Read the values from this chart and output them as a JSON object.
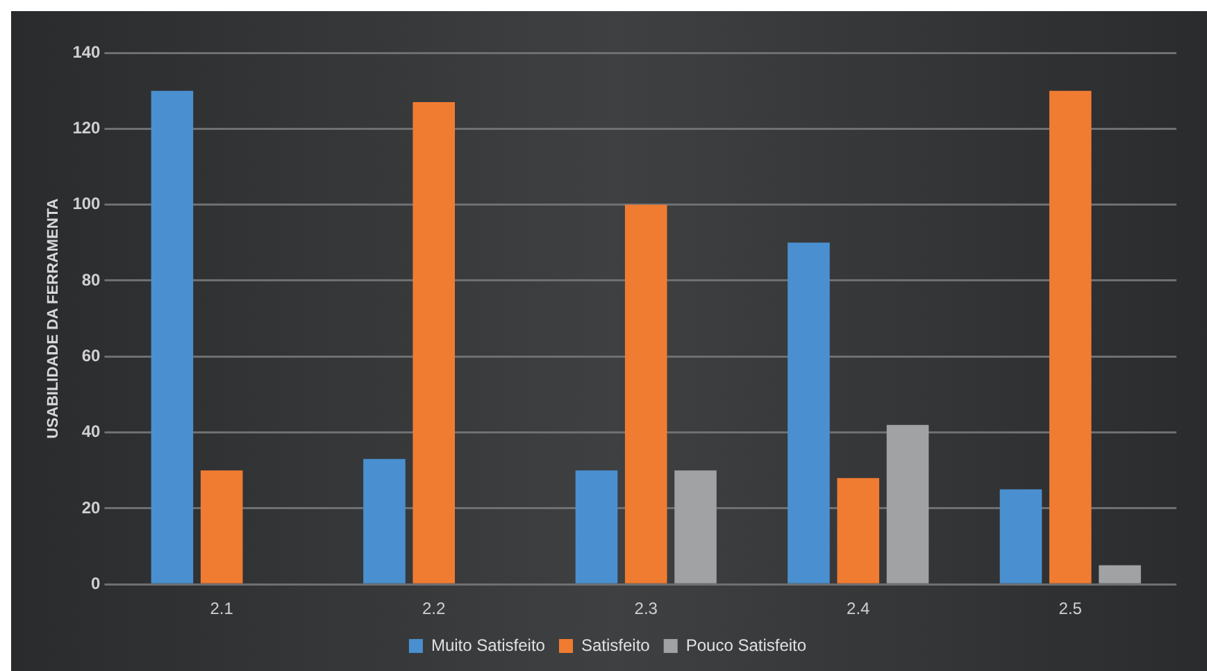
{
  "chart_data": {
    "type": "bar",
    "ylabel": "USABILIDADE DA FERRAMENTA",
    "categories": [
      "2.1",
      "2.2",
      "2.3",
      "2.4",
      "2.5"
    ],
    "series": [
      {
        "name": "Muito Satisfeito",
        "color": "#4a90d0",
        "values": [
          130,
          33,
          30,
          90,
          25
        ]
      },
      {
        "name": "Satisfeito",
        "color": "#f07c32",
        "values": [
          30,
          127,
          100,
          28,
          130
        ]
      },
      {
        "name": "Pouco Satisfeito",
        "color": "#a0a2a3",
        "values": [
          0,
          null,
          30,
          42,
          5
        ]
      }
    ],
    "ylim": [
      0,
      140
    ],
    "yticks": [
      0,
      20,
      40,
      60,
      80,
      100,
      120,
      140
    ],
    "grid": "y",
    "legend": "bottom"
  }
}
